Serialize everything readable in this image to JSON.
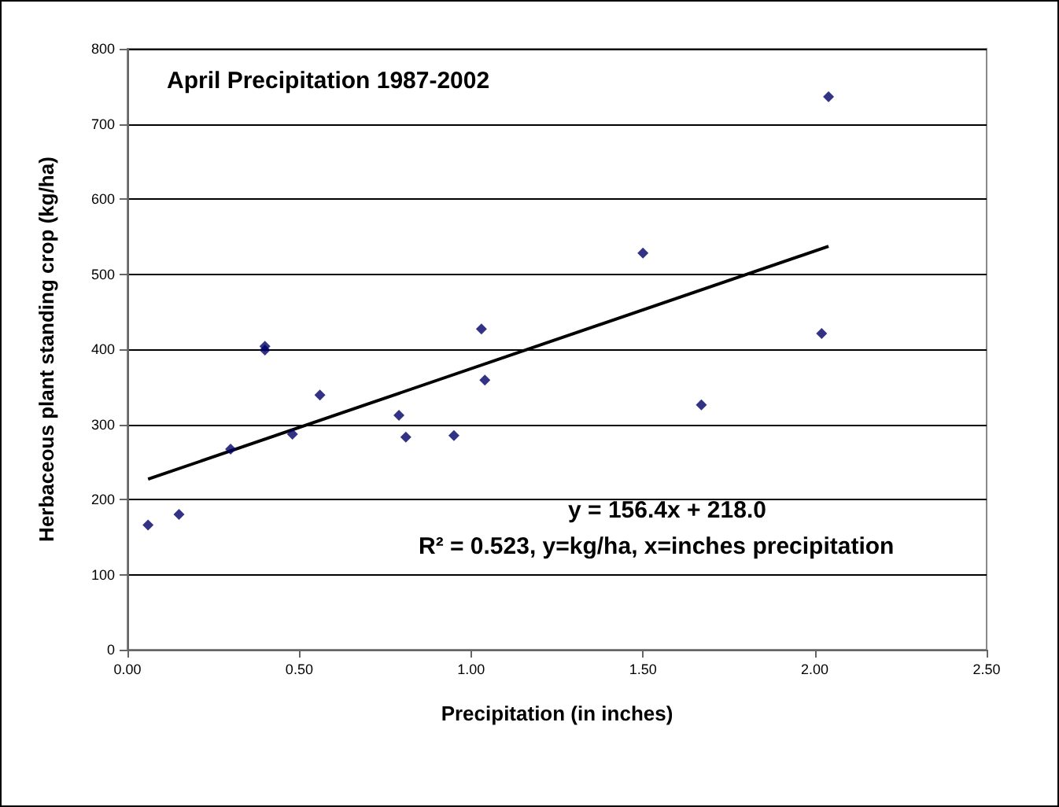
{
  "chart_data": {
    "type": "scatter",
    "title": "April Precipitation 1987-2002",
    "xlabel": "Precipitation (in inches)",
    "ylabel": "Herbaceous plant standing crop (kg/ha)",
    "annotations": [
      "y = 156.4x + 218.0",
      "R² = 0.523, y=kg/ha, x=inches precipitation"
    ],
    "series": [
      {
        "color": "#000066",
        "marker": "diamond",
        "x": [
          0.06,
          0.15,
          0.3,
          0.4,
          0.4,
          0.48,
          0.56,
          0.79,
          0.81,
          0.95,
          1.03,
          1.04,
          1.5,
          1.67,
          2.02,
          2.04
        ],
        "values": [
          166,
          180,
          267,
          404,
          399,
          287,
          339,
          312,
          283,
          285,
          427,
          359,
          528,
          326,
          421,
          736
        ]
      },
      {
        "type": "line",
        "color": "#000000",
        "marker": "none",
        "x": [
          0.06,
          2.04
        ],
        "values": [
          227,
          537
        ]
      }
    ],
    "xlim": [
      0,
      2.5
    ],
    "xticks": [
      {
        "value": 0,
        "label": "0.00"
      },
      {
        "value": 0.5,
        "label": "0.50"
      },
      {
        "value": 1,
        "label": "1.00"
      },
      {
        "value": 1.5,
        "label": "1.50"
      },
      {
        "value": 2,
        "label": "2.00"
      },
      {
        "value": 2.5,
        "label": "2.50"
      }
    ],
    "ylim": [
      0,
      800
    ],
    "yticks": [
      0,
      100,
      200,
      300,
      400,
      500,
      600,
      700,
      800
    ],
    "grid": "y"
  }
}
